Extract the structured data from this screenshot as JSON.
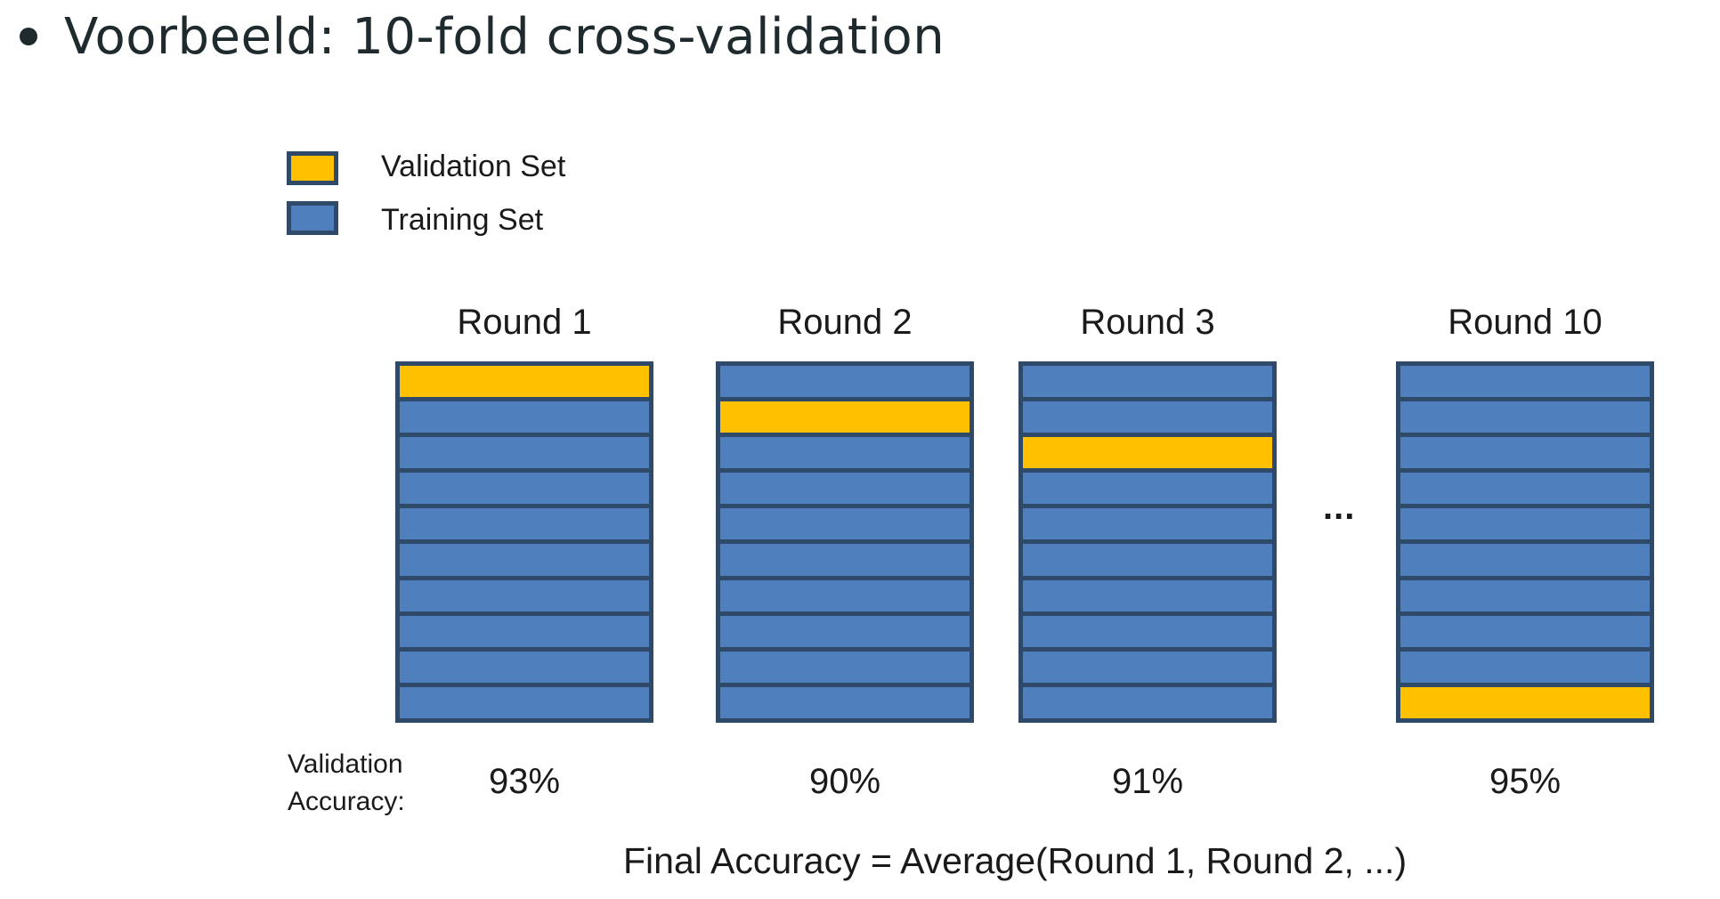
{
  "heading": "Voorbeeld: 10-fold cross-validation",
  "colors": {
    "validation": "#ffc000",
    "training": "#4f7fbd",
    "border": "#2f4a68"
  },
  "legend": {
    "validation_label": "Validation Set",
    "training_label": "Training Set"
  },
  "folds_per_round": 10,
  "rounds": [
    {
      "label": "Round 1",
      "validation_fold": 1,
      "accuracy": "93%"
    },
    {
      "label": "Round 2",
      "validation_fold": 2,
      "accuracy": "90%"
    },
    {
      "label": "Round 3",
      "validation_fold": 3,
      "accuracy": "91%"
    },
    {
      "label": "Round 10",
      "validation_fold": 10,
      "accuracy": "95%"
    }
  ],
  "ellipsis": "...",
  "accuracy_label_line1": "Validation",
  "accuracy_label_line2": "Accuracy:",
  "formula": "Final Accuracy  =  Average(Round 1, Round 2, ...)"
}
